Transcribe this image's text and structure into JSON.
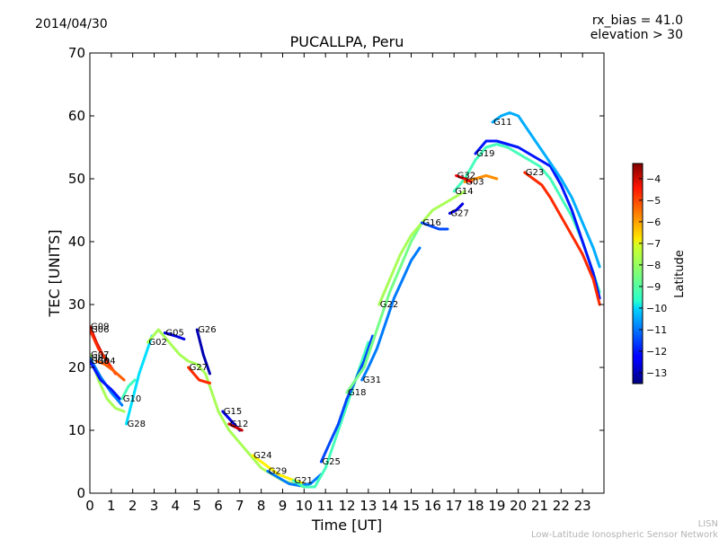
{
  "header": {
    "date": "2014/04/30",
    "rx_bias": "rx_bias = 41.0",
    "elevation": "elevation > 30"
  },
  "footer": {
    "org_short": "LISN",
    "org_full": "Low-Latitude Ionospheric Sensor Network"
  },
  "chart_data": {
    "type": "line",
    "title": "PUCALLPA, Peru",
    "xlabel": "Time [UT]",
    "ylabel": "TEC [UNITS]",
    "xlim": [
      0,
      24
    ],
    "ylim": [
      0,
      70
    ],
    "xticks": [
      0,
      1,
      2,
      3,
      4,
      5,
      6,
      7,
      8,
      9,
      10,
      11,
      12,
      13,
      14,
      15,
      16,
      17,
      18,
      19,
      20,
      21,
      22,
      23
    ],
    "yticks": [
      0,
      10,
      20,
      30,
      40,
      50,
      60,
      70
    ],
    "grid": false,
    "colorbar": {
      "label": "Latitude",
      "range": [
        -13.5,
        -3.3
      ],
      "ticks": [
        -13,
        -12,
        -11,
        -10,
        -9,
        -8,
        -7,
        -6,
        -5,
        -4
      ],
      "colormap": "jet"
    },
    "series": [
      {
        "name": "G09",
        "lat": -4,
        "x": [
          0,
          0.3,
          0.6
        ],
        "y": [
          26.5,
          24,
          22
        ]
      },
      {
        "name": "G06",
        "lat": -5,
        "x": [
          0,
          0.4,
          0.8,
          1.2
        ],
        "y": [
          26,
          23,
          21,
          19
        ]
      },
      {
        "name": "G07",
        "lat": -8,
        "x": [
          0,
          0.4,
          0.8,
          1.2,
          1.6
        ],
        "y": [
          22,
          18,
          15,
          13.5,
          13
        ]
      },
      {
        "name": "G01",
        "lat": -11,
        "x": [
          0,
          0.5,
          1,
          1.5
        ],
        "y": [
          21.5,
          18.5,
          16,
          14
        ]
      },
      {
        "name": "G30",
        "lat": -12,
        "x": [
          0,
          0.5,
          1,
          1.4
        ],
        "y": [
          21,
          18,
          16.5,
          15
        ]
      },
      {
        "name": "G04",
        "lat": -5.5,
        "x": [
          0.3,
          0.7,
          1.1,
          1.6
        ],
        "y": [
          21,
          20.5,
          19.5,
          18
        ]
      },
      {
        "name": "G10",
        "lat": -9,
        "x": [
          1.5,
          1.8,
          2.1
        ],
        "y": [
          15,
          17,
          18
        ]
      },
      {
        "name": "G28",
        "lat": -10,
        "x": [
          1.7,
          2,
          2.3,
          2.6,
          2.9
        ],
        "y": [
          11,
          15,
          19,
          22,
          25
        ]
      },
      {
        "name": "G02",
        "lat": -8,
        "x": [
          2.7,
          3.2,
          3.7,
          4.2,
          4.6,
          5,
          5.4,
          6,
          6.5,
          7,
          7.5,
          8,
          8.5,
          9,
          9.5,
          10,
          10.3
        ],
        "y": [
          24,
          26,
          24,
          22,
          21,
          20.5,
          19,
          13,
          10,
          8,
          6,
          4,
          3,
          2,
          1.5,
          1,
          1
        ]
      },
      {
        "name": "G05",
        "lat": -12.5,
        "x": [
          3.5,
          4,
          4.4
        ],
        "y": [
          25.5,
          25,
          24.5
        ]
      },
      {
        "name": "G26",
        "lat": -13,
        "x": [
          5,
          5.3,
          5.6
        ],
        "y": [
          26,
          22,
          19
        ]
      },
      {
        "name": "G27",
        "lat": -5,
        "x": [
          4.6,
          5.1,
          5.6
        ],
        "y": [
          20,
          18,
          17.5
        ]
      },
      {
        "name": "G15",
        "lat": -12.5,
        "x": [
          6.2,
          6.6,
          7
        ],
        "y": [
          13,
          11.5,
          10
        ]
      },
      {
        "name": "G12",
        "lat": -4,
        "x": [
          6.5,
          6.8,
          7.1
        ],
        "y": [
          11,
          10.5,
          10
        ]
      },
      {
        "name": "G24",
        "lat": -7,
        "x": [
          7.6,
          8.2,
          8.8,
          9.4,
          10
        ],
        "y": [
          6,
          4.5,
          3,
          2.2,
          1.5
        ]
      },
      {
        "name": "G29",
        "lat": -11,
        "x": [
          8.3,
          8.8,
          9.3,
          9.8,
          10.3,
          10.8
        ],
        "y": [
          3.5,
          2.5,
          1.5,
          1.2,
          1.5,
          3
        ]
      },
      {
        "name": "G21",
        "lat": -9,
        "x": [
          9.5,
          10,
          10.5,
          11,
          11.5,
          12,
          12.5,
          13
        ],
        "y": [
          2,
          1,
          1,
          4,
          9,
          14,
          19,
          24
        ]
      },
      {
        "name": "G25",
        "lat": -11.5,
        "x": [
          10.8,
          11.2,
          11.6,
          12,
          12.4,
          12.8,
          13.2
        ],
        "y": [
          5,
          8,
          11,
          15,
          18,
          21,
          25
        ]
      },
      {
        "name": "G18",
        "lat": -8.5,
        "x": [
          12,
          12.4,
          12.8,
          13.2,
          13.6,
          14,
          14.5,
          15,
          15.5
        ],
        "y": [
          16,
          18,
          20,
          24,
          28,
          32,
          36,
          40,
          43
        ]
      },
      {
        "name": "G31",
        "lat": -11,
        "x": [
          12.7,
          13,
          13.4,
          13.8,
          14.2,
          14.6,
          15,
          15.4
        ],
        "y": [
          18,
          20,
          23,
          27,
          31,
          34,
          37,
          39
        ]
      },
      {
        "name": "G22",
        "lat": -8,
        "x": [
          13.5,
          14,
          14.5,
          15,
          15.5,
          16,
          16.5,
          17,
          17.5
        ],
        "y": [
          30,
          34,
          38,
          41,
          43,
          45,
          46,
          47,
          48
        ]
      },
      {
        "name": "G16",
        "lat": -11.5,
        "x": [
          15.5,
          15.9,
          16.3,
          16.7
        ],
        "y": [
          43,
          42.5,
          42,
          42
        ]
      },
      {
        "name": "G27",
        "lat": -12.5,
        "x": [
          16.8,
          17.1,
          17.4
        ],
        "y": [
          44.5,
          45,
          46
        ]
      },
      {
        "name": "G14",
        "lat": -9,
        "x": [
          17,
          17.5,
          18,
          18.5,
          19,
          19.5,
          20,
          20.5,
          21,
          21.5,
          22,
          22.5,
          23,
          23.5,
          23.8
        ],
        "y": [
          48,
          50,
          53,
          55,
          55.5,
          55,
          54,
          53,
          52,
          50,
          47,
          44,
          40,
          35,
          32
        ]
      },
      {
        "name": "G03",
        "lat": -6,
        "x": [
          17.5,
          18,
          18.5,
          19
        ],
        "y": [
          49.5,
          50,
          50.5,
          50
        ]
      },
      {
        "name": "G32",
        "lat": -4.5,
        "x": [
          17.1,
          17.5,
          17.8
        ],
        "y": [
          50.5,
          50,
          49.5
        ]
      },
      {
        "name": "G19",
        "lat": -12,
        "x": [
          18,
          18.5,
          19,
          19.5,
          20,
          20.5,
          21,
          21.5,
          22,
          22.5,
          23,
          23.5,
          23.8
        ],
        "y": [
          54,
          56,
          56,
          55.5,
          55,
          54,
          53,
          52,
          49,
          45,
          40,
          35,
          31
        ]
      },
      {
        "name": "G11",
        "lat": -10.5,
        "x": [
          18.8,
          19.2,
          19.6,
          20,
          20.4,
          20.8,
          21.2,
          21.6,
          22,
          22.5,
          23,
          23.5,
          23.8
        ],
        "y": [
          59,
          60,
          60.5,
          60,
          58,
          56,
          54,
          52,
          50,
          47,
          43,
          39,
          36
        ]
      },
      {
        "name": "G23",
        "lat": -5,
        "x": [
          20.3,
          20.7,
          21.1,
          21.5,
          22,
          22.5,
          23,
          23.5,
          23.8
        ],
        "y": [
          51,
          50,
          49,
          47,
          44,
          41,
          38,
          34,
          30
        ]
      }
    ]
  }
}
